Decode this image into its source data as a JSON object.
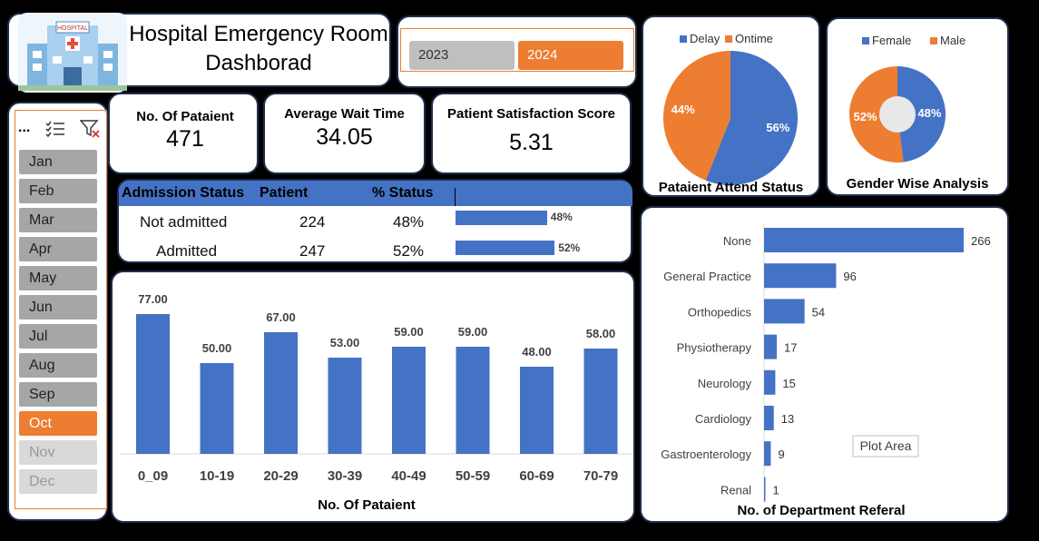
{
  "header": {
    "title_line1": "Hospital Emergency Room",
    "title_line2": "Dashborad",
    "logo_sign": "HOSPITAL"
  },
  "year_slicer": {
    "years": [
      "2023",
      "2024"
    ],
    "selected": "2024"
  },
  "month_slicer": {
    "months": [
      "Jan",
      "Feb",
      "Mar",
      "Apr",
      "May",
      "Jun",
      "Jul",
      "Aug",
      "Sep",
      "Oct",
      "Nov",
      "Dec"
    ],
    "selected": "Oct",
    "disabled": [
      "Nov",
      "Dec"
    ],
    "more_label": "..."
  },
  "kpis": {
    "patients_label": "No. Of Pataient",
    "patients_value": "471",
    "wait_label": "Average Wait Time",
    "wait_value": "34.05",
    "satisfaction_label": "Patient Satisfaction Score",
    "satisfaction_value": "5.31"
  },
  "admission": {
    "headers": [
      "Admission Status",
      "Patient",
      "% Status"
    ],
    "rows": [
      {
        "status": "Not admitted",
        "patient": "224",
        "pct": "48%",
        "bar_label": "48%",
        "value": 48
      },
      {
        "status": "Admitted",
        "patient": "247",
        "pct": "52%",
        "bar_label": "52%",
        "value": 52
      }
    ]
  },
  "colors": {
    "blue": "#4472c4",
    "orange": "#ed7d31",
    "border": "#1f2d4e"
  },
  "chart_data": [
    {
      "type": "pie",
      "title": "Pataient Attend Status",
      "series": [
        {
          "name": "Delay",
          "value": 56,
          "label": "56%"
        },
        {
          "name": "Ontime",
          "value": 44,
          "label": "44%"
        }
      ],
      "legend": "top"
    },
    {
      "type": "pie",
      "donut": true,
      "title": "Gender Wise Analysis",
      "series": [
        {
          "name": "Female",
          "value": 48,
          "label": "48%"
        },
        {
          "name": "Male",
          "value": 52,
          "label": "52%"
        }
      ],
      "legend": "top"
    },
    {
      "type": "bar",
      "title": "",
      "xlabel": "No. Of Pataient",
      "categories": [
        "0_09",
        "10-19",
        "20-29",
        "30-39",
        "40-49",
        "50-59",
        "60-69",
        "70-79"
      ],
      "values": [
        77.0,
        50.0,
        67.0,
        53.0,
        59.0,
        59.0,
        48.0,
        58.0
      ],
      "value_labels": [
        "77.00",
        "50.00",
        "67.00",
        "53.00",
        "59.00",
        "59.00",
        "48.00",
        "58.00"
      ],
      "ylim": [
        0,
        80
      ]
    },
    {
      "type": "bar",
      "orientation": "horizontal",
      "title": "",
      "xlabel": "No. of Department Referal",
      "categories": [
        "None",
        "General Practice",
        "Orthopedics",
        "Physiotherapy",
        "Neurology",
        "Cardiology",
        "Gastroenterology",
        "Renal"
      ],
      "values": [
        266,
        96,
        54,
        17,
        15,
        13,
        9,
        1
      ],
      "value_labels": [
        "266",
        "96",
        "54",
        "17",
        "15",
        "13",
        "9",
        "1"
      ],
      "tooltip": "Plot Area"
    }
  ]
}
